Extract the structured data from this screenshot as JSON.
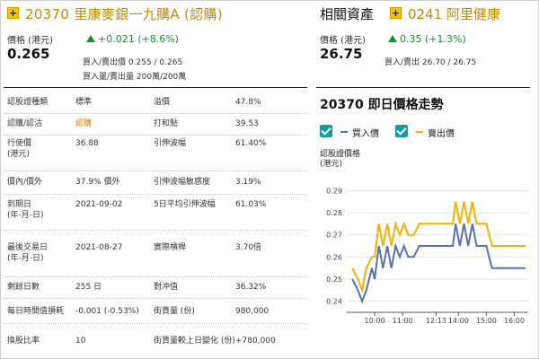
{
  "warrant": {
    "plus_icon": "+",
    "title": "20370 里康麥銀一九購A (認購)",
    "price_label": "價格 (港元)",
    "price": "0.265",
    "change": "+0.021 (+8.6%)",
    "bid_ask": "買入/賣出價 0.255 / 0.265",
    "bid_ask_volume": "買入量/賣出量 200萬/200萬"
  },
  "related": {
    "title": "相關資產",
    "plus_icon": "+",
    "stock_title": "0241 阿里健康",
    "price_label": "價格 (港元)",
    "price": "26.75",
    "change": "0.35 (+1.3%)",
    "bid_ask": "買入/賣出 26.70 / 26.75"
  },
  "table": {
    "rows": [
      {
        "l1": "認股證種類",
        "v1": "標準",
        "l2": "溢價",
        "v2": "47.8%"
      },
      {
        "l1": "認購/認沽",
        "v1": "認購",
        "l2": "打和點",
        "v2": "39.53"
      },
      {
        "l1": "行使價\n(港元)",
        "v1": "36.88",
        "l2": "引伸波幅",
        "v2": "61.40%"
      },
      {
        "l1": "價內/價外",
        "v1": "37.9% 價外",
        "l2": "引伸波幅敏感度",
        "v2": "3.19%"
      },
      {
        "l1": "到期日\n(年-月-日)",
        "v1": "2021-09-02",
        "l2": "5日平均引伸波幅",
        "v2": "61.03%"
      },
      {
        "l1": "最後交易日\n(年-月-日)",
        "v1": "2021-08-27",
        "l2": "實際槓桿",
        "v2": "3.70倍"
      },
      {
        "l1": "剩餘日數",
        "v1": "255 日",
        "l2": "對沖值",
        "v2": "36.32%"
      },
      {
        "l1": "每日時間值損耗",
        "v1": "-0.001 (-0.53%)",
        "l2": "街貨量 (份)",
        "v2": "980,000"
      },
      {
        "l1": "換股比率",
        "v1": "10",
        "l2": "街貨量較上日變化 (份)",
        "v2": "+780,000"
      }
    ]
  },
  "chart_data": {
    "type": "line",
    "title": "20370 即日價格走勢",
    "ylabel": "認股證價格\n(港元)",
    "ylim": [
      0.235,
      0.295
    ],
    "yticks": [
      "0.29",
      "0.28",
      "0.27",
      "0.26",
      "0.25",
      "0.24"
    ],
    "ytick_values": [
      0.29,
      0.28,
      0.27,
      0.26,
      0.25,
      0.24
    ],
    "xtick_labels": [
      "10:00",
      "11:00",
      "12:13",
      "14:00",
      "15:00",
      "16:00"
    ],
    "xtick_values": [
      1.0,
      2.0,
      3.2,
      4.0,
      5.0,
      6.0
    ],
    "xlim": [
      0,
      6.5
    ],
    "legend": [
      "買入價",
      "賣出價"
    ],
    "series": [
      {
        "name": "買入價",
        "color": "#5b6eb0",
        "x": [
          0.2,
          0.4,
          0.55,
          0.7,
          0.9,
          1.0,
          1.15,
          1.3,
          1.45,
          1.6,
          1.75,
          1.9,
          2.05,
          2.2,
          2.4,
          2.6,
          2.8,
          3.0,
          3.2,
          3.4,
          3.6,
          3.8,
          3.9,
          4.05,
          4.2,
          4.35,
          4.5,
          4.65,
          4.8,
          5.0,
          5.2,
          5.4,
          5.6,
          5.8,
          6.0,
          6.2,
          6.4
        ],
        "y": [
          0.25,
          0.245,
          0.24,
          0.245,
          0.255,
          0.25,
          0.265,
          0.255,
          0.265,
          0.255,
          0.265,
          0.26,
          0.265,
          0.26,
          0.26,
          0.265,
          0.265,
          0.265,
          0.265,
          0.265,
          0.265,
          0.265,
          0.275,
          0.265,
          0.275,
          0.265,
          0.275,
          0.265,
          0.265,
          0.265,
          0.255,
          0.255,
          0.255,
          0.255,
          0.255,
          0.255,
          0.255
        ]
      },
      {
        "name": "賣出價",
        "color": "#f0b400",
        "x": [
          0.2,
          0.4,
          0.55,
          0.7,
          0.9,
          1.0,
          1.15,
          1.3,
          1.45,
          1.6,
          1.75,
          1.9,
          2.05,
          2.2,
          2.4,
          2.6,
          2.8,
          3.0,
          3.2,
          3.4,
          3.6,
          3.8,
          3.9,
          4.05,
          4.2,
          4.35,
          4.5,
          4.65,
          4.8,
          5.0,
          5.2,
          5.4,
          5.6,
          5.8,
          6.0,
          6.2,
          6.4
        ],
        "y": [
          0.255,
          0.25,
          0.245,
          0.255,
          0.26,
          0.26,
          0.275,
          0.265,
          0.275,
          0.265,
          0.275,
          0.27,
          0.275,
          0.27,
          0.27,
          0.275,
          0.275,
          0.275,
          0.275,
          0.275,
          0.275,
          0.275,
          0.285,
          0.275,
          0.285,
          0.275,
          0.285,
          0.275,
          0.275,
          0.275,
          0.265,
          0.265,
          0.265,
          0.265,
          0.265,
          0.265,
          0.265
        ]
      }
    ]
  }
}
